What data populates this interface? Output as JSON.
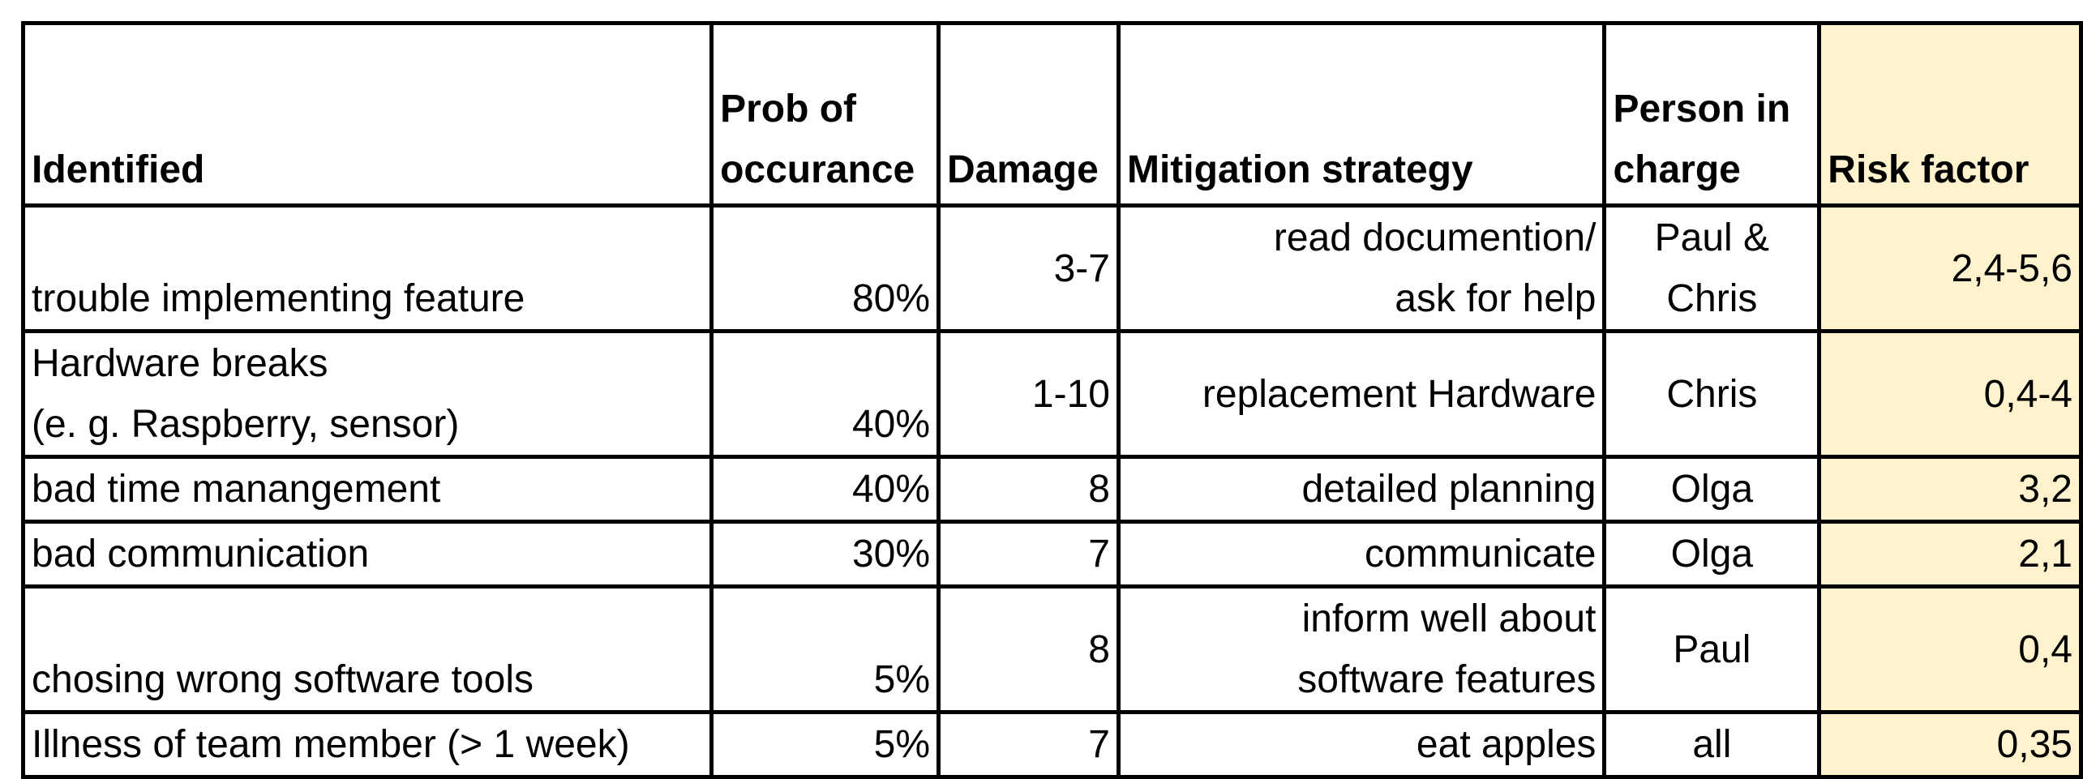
{
  "table": {
    "headers": {
      "identified": "Identified",
      "prob_line1": "Prob of",
      "prob_line2": "occurance",
      "damage": "Damage",
      "mitigation": "Mitigation strategy",
      "person_line1": "Person in",
      "person_line2": "charge",
      "risk": "Risk factor"
    },
    "rows": [
      {
        "identified": [
          "",
          "trouble implementing feature"
        ],
        "prob": "80%",
        "damage": "3-7",
        "mitigation": [
          "read documention/",
          "ask for help"
        ],
        "person": [
          "Paul &",
          "Chris"
        ],
        "risk": "2,4-5,6"
      },
      {
        "identified": [
          "Hardware breaks",
          "(e. g. Raspberry, sensor)"
        ],
        "prob": "40%",
        "damage": "1-10",
        "mitigation": [
          "replacement Hardware"
        ],
        "person": [
          "Chris"
        ],
        "risk": "0,4-4"
      },
      {
        "identified": [
          "bad time manangement"
        ],
        "prob": "40%",
        "damage": "8",
        "mitigation": [
          "detailed planning"
        ],
        "person": [
          "Olga"
        ],
        "risk": "3,2"
      },
      {
        "identified": [
          "bad communication"
        ],
        "prob": "30%",
        "damage": "7",
        "mitigation": [
          "communicate"
        ],
        "person": [
          "Olga"
        ],
        "risk": "2,1"
      },
      {
        "identified": [
          "",
          "chosing wrong software tools"
        ],
        "prob": "5%",
        "damage": "8",
        "mitigation": [
          "inform well about",
          "software features"
        ],
        "person": [
          "Paul"
        ],
        "risk": "0,4"
      },
      {
        "identified": [
          "Illness of team member (> 1 week)"
        ],
        "prob": "5%",
        "damage": "7",
        "mitigation": [
          "eat apples"
        ],
        "person": [
          "all"
        ],
        "risk": "0,35"
      }
    ]
  },
  "colors": {
    "risk_highlight": "#fff2cc",
    "border": "#000000"
  }
}
